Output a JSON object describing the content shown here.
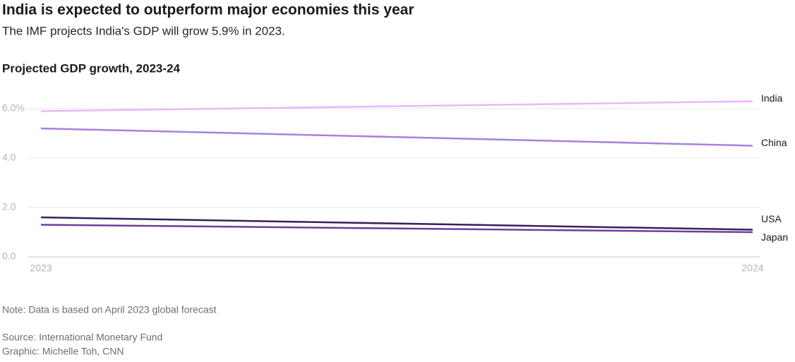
{
  "chart_data": {
    "type": "line",
    "title": "India is expected to outperform major economies this year",
    "subtitle": "The IMF projects India's GDP will grow 5.9% in 2023.",
    "heading": "Projected GDP growth, 2023-24",
    "note": "Note: Data is based on April 2023 global forecast",
    "source": "Source: International Monetary Fund",
    "credit": "Graphic: Michelle Toh, CNN",
    "x": [
      2023,
      2024
    ],
    "xlim": [
      2023,
      2024
    ],
    "xticks": [
      2023,
      2024
    ],
    "ylim": [
      0,
      6.5
    ],
    "yticks": [
      {
        "value": 0,
        "label": "0.0"
      },
      {
        "value": 2,
        "label": "2.0"
      },
      {
        "value": 4,
        "label": "4.0"
      },
      {
        "value": 6,
        "label": "6.0%"
      }
    ],
    "grid": true,
    "series": [
      {
        "name": "India",
        "color": "#e9b8f7",
        "values": [
          5.9,
          6.3
        ]
      },
      {
        "name": "China",
        "color": "#a882d9",
        "values": [
          5.2,
          4.5
        ]
      },
      {
        "name": "USA",
        "color": "#3b1f5c",
        "values": [
          1.6,
          1.1
        ]
      },
      {
        "name": "Japan",
        "color": "#6b3f99",
        "values": [
          1.3,
          1.0
        ]
      }
    ]
  }
}
